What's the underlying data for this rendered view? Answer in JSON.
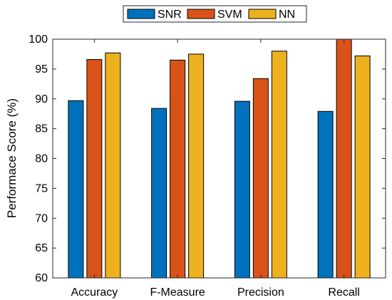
{
  "chart_data": {
    "type": "bar",
    "title": "",
    "xlabel": "",
    "ylabel": "Performace Score (%)",
    "ylim": [
      60,
      100
    ],
    "yticks": [
      60,
      65,
      70,
      75,
      80,
      85,
      90,
      95,
      100
    ],
    "grid": false,
    "legend_position": "top-center",
    "categories": [
      "Accuracy",
      "F-Measure",
      "Precision",
      "Recall"
    ],
    "series": [
      {
        "name": "SNR",
        "color": "#0072BD",
        "values": [
          89.7,
          88.4,
          89.6,
          87.9
        ]
      },
      {
        "name": "SVM",
        "color": "#D95319",
        "values": [
          96.6,
          96.5,
          93.4,
          100.0
        ]
      },
      {
        "name": "NN",
        "color": "#EDB120",
        "values": [
          97.7,
          97.5,
          98.0,
          97.2
        ]
      }
    ]
  }
}
